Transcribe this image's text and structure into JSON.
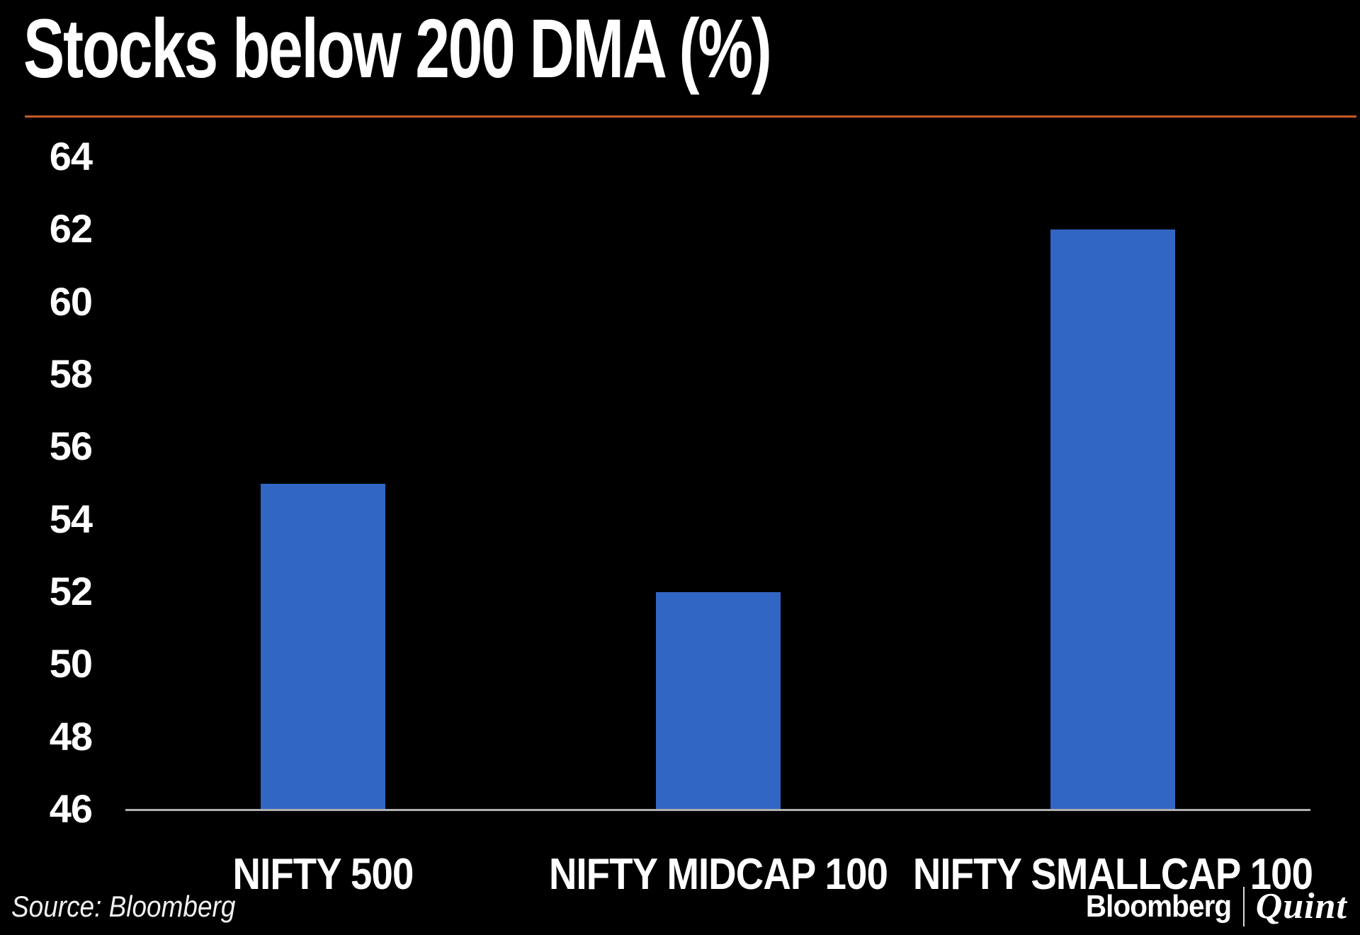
{
  "title": "Stocks below 200 DMA (%)",
  "divider_color": "#c75b28",
  "source_caption": "Source: Bloomberg",
  "footer_logo": {
    "bloomberg": "Bloomberg",
    "quint": "Quint"
  },
  "colors": {
    "background": "#000000",
    "bar_blue": "#3166c4",
    "axis_gray": "#b0b0b0",
    "text_white": "#ffffff",
    "accent_orange": "#c75b28"
  },
  "chart_data": {
    "type": "bar",
    "title": "Stocks below 200 DMA (%)",
    "categories": [
      "NIFTY 500",
      "NIFTY MIDCAP 100",
      "NIFTY SMALLCAP 100"
    ],
    "values": [
      55,
      52,
      62
    ],
    "xlabel": "",
    "ylabel": "",
    "ylim": [
      46,
      64
    ],
    "ytick_step": 2,
    "y_ticks": [
      46,
      48,
      50,
      52,
      54,
      56,
      58,
      60,
      62,
      64
    ],
    "grid": false,
    "legend": false,
    "bar_color": "#3166c4",
    "axis_color": "#b0b0b0",
    "tick_label_color": "#ffffff",
    "category_label_color": "#ffffff"
  }
}
